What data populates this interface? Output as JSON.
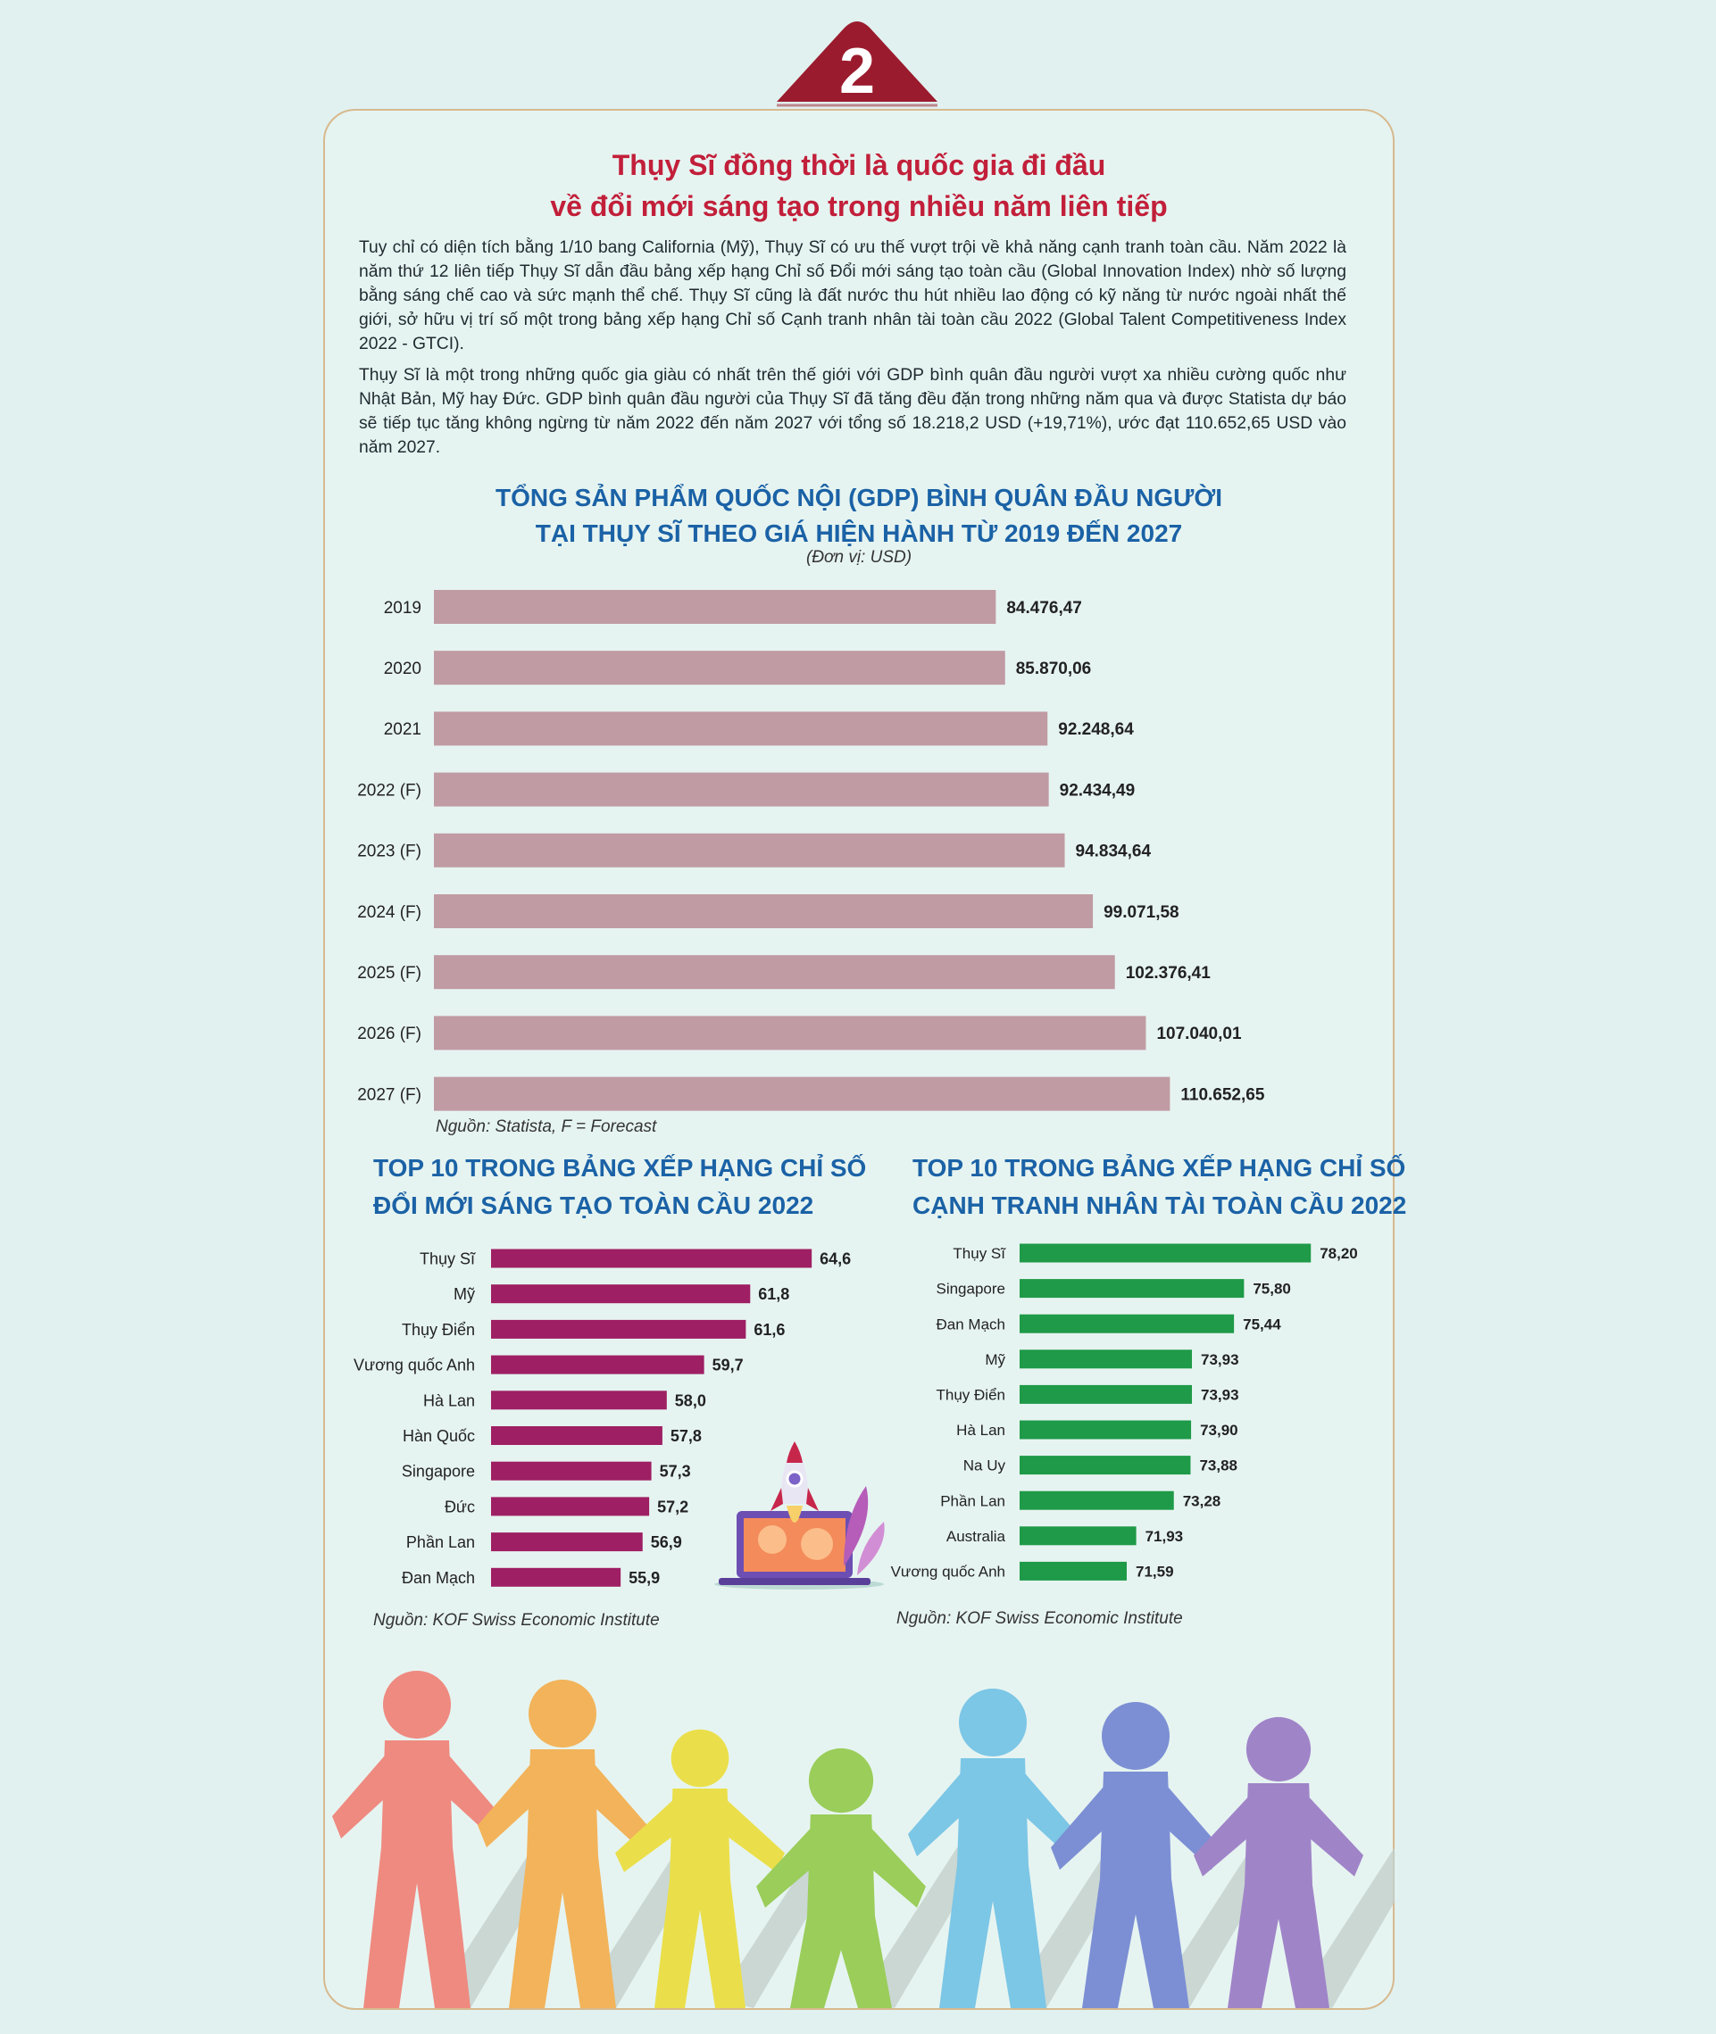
{
  "badge": {
    "number": "2",
    "color": "#9b1b2e"
  },
  "headline": {
    "line1": "Thụy Sĩ đồng thời là quốc gia đi đầu",
    "line2": "về đổi mới sáng tạo trong nhiều năm liên tiếp"
  },
  "paragraphs": {
    "p1": "Tuy chỉ có diện tích bằng 1/10 bang California (Mỹ), Thụy Sĩ có ưu thế vượt trội về khả năng cạnh tranh toàn cầu. Năm 2022 là năm thứ 12 liên tiếp Thụy Sĩ dẫn đầu bảng xếp hạng Chỉ số Đổi mới sáng tạo toàn cầu (Global Innovation Index) nhờ số lượng bằng sáng chế cao và sức mạnh thể chế. Thụy Sĩ cũng là đất nước thu hút nhiều lao động có kỹ năng từ nước ngoài nhất thế giới, sở hữu vị trí số một trong bảng xếp hạng Chỉ số Cạnh tranh nhân tài toàn cầu 2022 (Global Talent Competitiveness Index 2022 - GTCI).",
    "p2": "Thụy Sĩ là một trong những quốc gia giàu có nhất trên thế giới với GDP bình quân đầu người vượt xa nhiều cường quốc như Nhật Bản, Mỹ hay Đức. GDP bình quân đầu người của Thụy Sĩ đã tăng đều đặn trong những năm qua và được Statista dự báo sẽ tiếp tục tăng không ngừng từ năm 2022 đến năm 2027 với tổng số 18.218,2 USD (+19,71%), ước đạt 110.652,65 USD vào năm 2027."
  },
  "chart_data": [
    {
      "type": "bar",
      "orientation": "horizontal",
      "title": "TỔNG SẢN PHẨM QUỐC NỘI (GDP) BÌNH QUÂN ĐẦU NGƯỜI TẠI THỤY SĨ THEO GIÁ HIỆN HÀNH TỪ 2019 ĐẾN 2027",
      "title_line1": "TỔNG SẢN PHẨM QUỐC NỘI (GDP) BÌNH QUÂN ĐẦU NGƯỜI",
      "title_line2": "TẠI THỤY SĨ THEO GIÁ HIỆN HÀNH TỪ 2019 ĐẾN 2027",
      "unit": "(Đơn vị: USD)",
      "source": "Nguồn: Statista, F = Forecast",
      "categories": [
        "2019",
        "2020",
        "2021",
        "2022 (F)",
        "2023 (F)",
        "2024 (F)",
        "2025 (F)",
        "2026 (F)",
        "2027 (F)"
      ],
      "values": [
        84476.47,
        85870.06,
        92248.64,
        92434.49,
        94834.64,
        99071.58,
        102376.41,
        107040.01,
        110652.65
      ],
      "value_labels": [
        "84.476,47",
        "85.870,06",
        "92.248,64",
        "92.434,49",
        "94.834,64",
        "99.071,58",
        "102.376,41",
        "107.040,01",
        "110.652,65"
      ],
      "bar_color": "#c09ba3"
    },
    {
      "type": "bar",
      "orientation": "horizontal",
      "title": "TOP 10 TRONG BẢNG XẾP HẠNG CHỈ SỐ ĐỔI MỚI SÁNG TẠO TOÀN CẦU 2022",
      "title_line1": "TOP 10 TRONG BẢNG XẾP HẠNG CHỈ SỐ",
      "title_line2": "ĐỔI MỚI SÁNG TẠO TOÀN CẦU 2022",
      "source": "Nguồn: KOF Swiss Economic Institute",
      "categories": [
        "Thụy Sĩ",
        "Mỹ",
        "Thụy Điển",
        "Vương quốc Anh",
        "Hà Lan",
        "Hàn Quốc",
        "Singapore",
        "Đức",
        "Phần Lan",
        "Đan Mạch"
      ],
      "values": [
        64.6,
        61.8,
        61.6,
        59.7,
        58.0,
        57.8,
        57.3,
        57.2,
        56.9,
        55.9
      ],
      "value_labels": [
        "64,6",
        "61,8",
        "61,6",
        "59,7",
        "58,0",
        "57,8",
        "57,3",
        "57,2",
        "56,9",
        "55,9"
      ],
      "bar_color": "#9e1f63"
    },
    {
      "type": "bar",
      "orientation": "horizontal",
      "title": "TOP 10 TRONG BẢNG XẾP HẠNG CHỈ SỐ CẠNH TRANH NHÂN TÀI TOÀN CẦU 2022",
      "title_line1": "TOP 10 TRONG BẢNG XẾP HẠNG CHỈ SỐ",
      "title_line2": "CẠNH TRANH NHÂN TÀI TOÀN CẦU 2022",
      "source": "Nguồn: KOF Swiss Economic Institute",
      "categories": [
        "Thụy Sĩ",
        "Singapore",
        "Đan Mạch",
        "Mỹ",
        "Thụy Điển",
        "Hà Lan",
        "Na Uy",
        "Phần Lan",
        "Australia",
        "Vương quốc Anh"
      ],
      "values": [
        78.2,
        75.8,
        75.44,
        73.93,
        73.93,
        73.9,
        73.88,
        73.28,
        71.93,
        71.59
      ],
      "value_labels": [
        "78,20",
        "75,80",
        "75,44",
        "73,93",
        "73,93",
        "73,90",
        "73,88",
        "73,28",
        "71,93",
        "71,59"
      ],
      "bar_color": "#1e9a48"
    }
  ],
  "illustrations": {
    "rocket": "rocket-laptop-icon",
    "people": "paper-people-chain",
    "people_colors": [
      "#ef8a80",
      "#f2b35a",
      "#eadf4a",
      "#9acd5a",
      "#7cc6e6",
      "#7c8fd4",
      "#a084c8"
    ]
  }
}
